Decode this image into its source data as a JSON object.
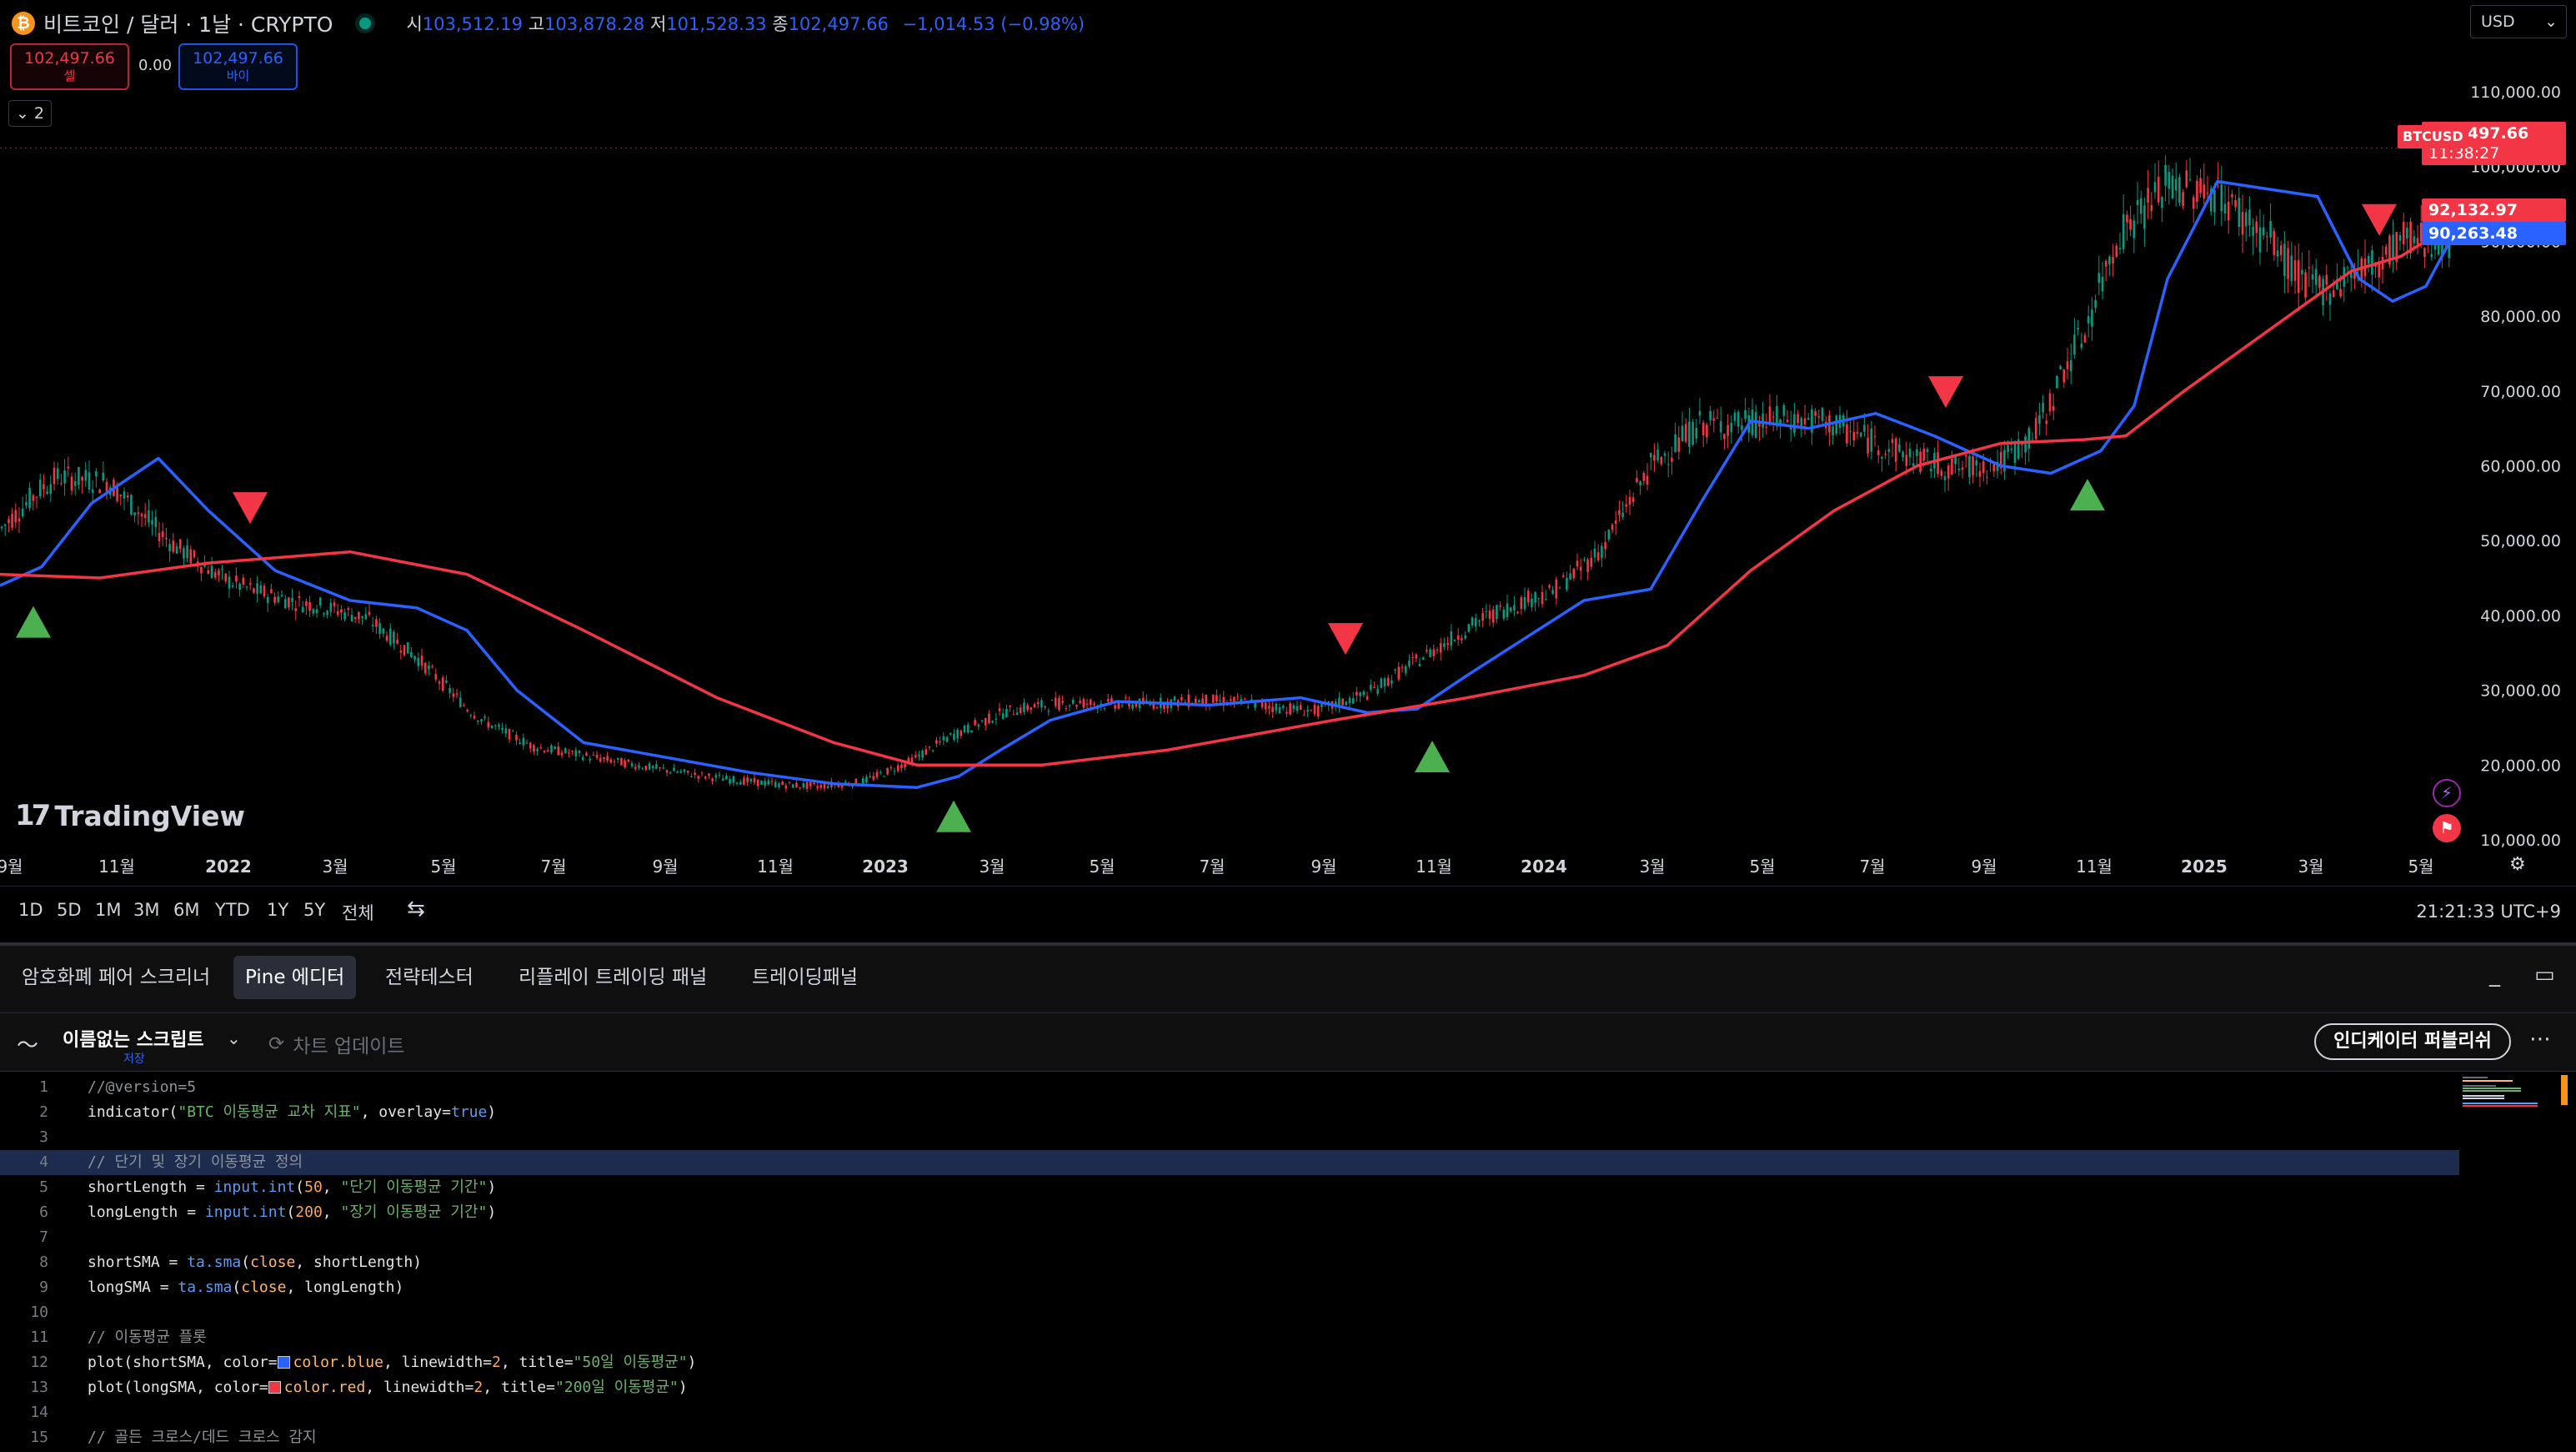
{
  "header": {
    "symbol_title": "비트코인 / 달러 · 1날 · CRYPTO",
    "logo_glyph": "₿",
    "ohlc": {
      "open_label": "시",
      "open": "103,512.19",
      "high_label": "고",
      "high": "103,878.28",
      "low_label": "저",
      "low": "101,528.33",
      "close_label": "종",
      "close": "102,497.66",
      "change": "−1,014.53 (−0.98%)"
    },
    "sell": {
      "price": "102,497.66",
      "label": "셀"
    },
    "spread": "0.00",
    "buy": {
      "price": "102,497.66",
      "label": "바이"
    },
    "indicator_count": "2",
    "currency": "USD"
  },
  "price_axis": {
    "ticks": [
      "110,000.00",
      "100,000.00",
      "90,000.00",
      "80,000.00",
      "70,000.00",
      "60,000.00",
      "50,000.00",
      "40,000.00",
      "30,000.00",
      "20,000.00",
      "10,000.00"
    ],
    "last_symbol": "BTCUSD",
    "last_price": "102,497.66",
    "countdown": "11:38:27",
    "sma200_value": "92,132.97",
    "sma50_value": "90,263.48"
  },
  "time_axis": {
    "labels": [
      "9월",
      "11월",
      "2022",
      "3월",
      "5월",
      "7월",
      "9월",
      "11월",
      "2023",
      "3월",
      "5월",
      "7월",
      "9월",
      "11월",
      "2024",
      "3월",
      "5월",
      "7월",
      "9월",
      "11월",
      "2025",
      "3월",
      "5월"
    ]
  },
  "watermark": "TradingView",
  "range_bar": {
    "ranges": [
      "1D",
      "5D",
      "1M",
      "3M",
      "6M",
      "YTD",
      "1Y",
      "5Y",
      "전체"
    ],
    "clock": "21:21:33 UTC+9"
  },
  "panel": {
    "tabs": [
      "암호화폐 페어 스크리너",
      "Pine 에디터",
      "전략테스터",
      "리플레이 트레이딩 패널",
      "트레이딩패널"
    ],
    "active_tab": "Pine 에디터",
    "script_name": "이름없는 스크립트",
    "save_state": "저장",
    "update_chart": "차트 업데이트",
    "publish": "인디케이터 퍼블리쉬"
  },
  "editor": {
    "lines": [
      {
        "n": "1",
        "text": "//@version=5"
      },
      {
        "n": "2",
        "text": "indicator(\"BTC 이동평균 교차 지표\", overlay=true)"
      },
      {
        "n": "3",
        "text": ""
      },
      {
        "n": "4",
        "text": "// 단기 및 장기 이동평균 정의"
      },
      {
        "n": "5",
        "text": "shortLength = input.int(50, \"단기 이동평균 기간\")"
      },
      {
        "n": "6",
        "text": "longLength = input.int(200, \"장기 이동평균 기간\")"
      },
      {
        "n": "7",
        "text": ""
      },
      {
        "n": "8",
        "text": "shortSMA = ta.sma(close, shortLength)"
      },
      {
        "n": "9",
        "text": "longSMA = ta.sma(close, longLength)"
      },
      {
        "n": "10",
        "text": ""
      },
      {
        "n": "11",
        "text": "// 이동평균 플롯"
      },
      {
        "n": "12",
        "text": "plot(shortSMA, color=color.blue, linewidth=2, title=\"50일 이동평균\")"
      },
      {
        "n": "13",
        "text": "plot(longSMA, color=color.red, linewidth=2, title=\"200일 이동평균\")"
      },
      {
        "n": "14",
        "text": ""
      },
      {
        "n": "15",
        "text": "// 골든 크로스/데드 크로스 감지"
      }
    ]
  },
  "chart_data": {
    "type": "line",
    "ylim": [
      5000,
      115000
    ],
    "series": [
      {
        "name": "50일 이동평균",
        "color": "#2962ff",
        "points": [
          [
            0,
            44000
          ],
          [
            50,
            46500
          ],
          [
            110,
            55000
          ],
          [
            190,
            61000
          ],
          [
            250,
            54000
          ],
          [
            330,
            46000
          ],
          [
            420,
            42000
          ],
          [
            500,
            41000
          ],
          [
            560,
            38000
          ],
          [
            620,
            30000
          ],
          [
            700,
            23000
          ],
          [
            800,
            21000
          ],
          [
            900,
            19000
          ],
          [
            1000,
            17500
          ],
          [
            1100,
            17000
          ],
          [
            1150,
            18500
          ],
          [
            1200,
            22000
          ],
          [
            1260,
            26000
          ],
          [
            1340,
            28500
          ],
          [
            1450,
            28000
          ],
          [
            1560,
            29000
          ],
          [
            1640,
            27000
          ],
          [
            1700,
            27500
          ],
          [
            1760,
            32000
          ],
          [
            1830,
            37000
          ],
          [
            1900,
            42000
          ],
          [
            1980,
            43500
          ],
          [
            2040,
            55000
          ],
          [
            2100,
            66000
          ],
          [
            2170,
            65000
          ],
          [
            2250,
            67000
          ],
          [
            2320,
            64000
          ],
          [
            2400,
            60000
          ],
          [
            2460,
            59000
          ],
          [
            2520,
            62000
          ],
          [
            2560,
            68000
          ],
          [
            2600,
            85000
          ],
          [
            2660,
            98000
          ],
          [
            2720,
            97000
          ],
          [
            2780,
            96000
          ],
          [
            2830,
            85000
          ],
          [
            2870,
            82000
          ],
          [
            2910,
            84000
          ],
          [
            2940,
            90263
          ]
        ]
      },
      {
        "name": "200일 이동평균",
        "color": "#f23645",
        "points": [
          [
            0,
            45500
          ],
          [
            120,
            45000
          ],
          [
            250,
            47000
          ],
          [
            420,
            48500
          ],
          [
            560,
            45500
          ],
          [
            700,
            38000
          ],
          [
            860,
            29000
          ],
          [
            1000,
            23000
          ],
          [
            1100,
            20000
          ],
          [
            1250,
            20000
          ],
          [
            1400,
            22000
          ],
          [
            1600,
            26000
          ],
          [
            1760,
            29000
          ],
          [
            1900,
            32000
          ],
          [
            2000,
            36000
          ],
          [
            2100,
            46000
          ],
          [
            2200,
            54000
          ],
          [
            2300,
            60000
          ],
          [
            2400,
            63000
          ],
          [
            2500,
            63500
          ],
          [
            2550,
            64000
          ],
          [
            2620,
            70000
          ],
          [
            2720,
            78000
          ],
          [
            2820,
            86000
          ],
          [
            2880,
            88000
          ],
          [
            2940,
            92133
          ]
        ]
      }
    ],
    "price": {
      "last": 102497.66
    }
  }
}
